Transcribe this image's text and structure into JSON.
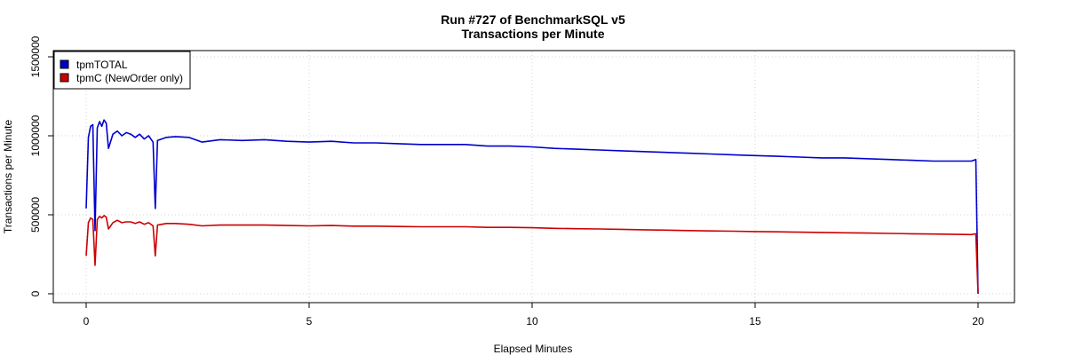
{
  "chart_data": {
    "type": "line",
    "title": "Run #727 of BenchmarkSQL v5",
    "subtitle": "Transactions per Minute",
    "xlabel": "Elapsed Minutes",
    "ylabel": "Transactions per Minute",
    "xlim": [
      0,
      20
    ],
    "ylim": [
      0,
      1500000
    ],
    "xticks": [
      0,
      5,
      10,
      15,
      20
    ],
    "yticks": [
      0,
      500000,
      1000000,
      1500000
    ],
    "grid": true,
    "legend_position": "top-left",
    "series": [
      {
        "name": "tpmTOTAL",
        "color": "#0000CD",
        "points": [
          [
            0.0,
            540000
          ],
          [
            0.05,
            990000
          ],
          [
            0.1,
            1060000
          ],
          [
            0.15,
            1070000
          ],
          [
            0.2,
            400000
          ],
          [
            0.25,
            1050000
          ],
          [
            0.3,
            1090000
          ],
          [
            0.35,
            1060000
          ],
          [
            0.4,
            1100000
          ],
          [
            0.45,
            1080000
          ],
          [
            0.5,
            920000
          ],
          [
            0.6,
            1010000
          ],
          [
            0.7,
            1030000
          ],
          [
            0.8,
            1000000
          ],
          [
            0.9,
            1020000
          ],
          [
            1.0,
            1010000
          ],
          [
            1.1,
            990000
          ],
          [
            1.2,
            1010000
          ],
          [
            1.3,
            980000
          ],
          [
            1.4,
            1000000
          ],
          [
            1.5,
            960000
          ],
          [
            1.55,
            540000
          ],
          [
            1.6,
            970000
          ],
          [
            1.8,
            990000
          ],
          [
            2.0,
            995000
          ],
          [
            2.3,
            990000
          ],
          [
            2.6,
            960000
          ],
          [
            3.0,
            975000
          ],
          [
            3.5,
            970000
          ],
          [
            4.0,
            975000
          ],
          [
            4.5,
            965000
          ],
          [
            5.0,
            960000
          ],
          [
            5.5,
            965000
          ],
          [
            6.0,
            955000
          ],
          [
            6.5,
            955000
          ],
          [
            7.0,
            950000
          ],
          [
            7.5,
            945000
          ],
          [
            8.0,
            945000
          ],
          [
            8.5,
            945000
          ],
          [
            9.0,
            935000
          ],
          [
            9.5,
            935000
          ],
          [
            10.0,
            930000
          ],
          [
            10.5,
            920000
          ],
          [
            11.0,
            915000
          ],
          [
            11.5,
            910000
          ],
          [
            12.0,
            905000
          ],
          [
            12.5,
            900000
          ],
          [
            13.0,
            895000
          ],
          [
            13.5,
            890000
          ],
          [
            14.0,
            885000
          ],
          [
            14.5,
            880000
          ],
          [
            15.0,
            875000
          ],
          [
            15.5,
            870000
          ],
          [
            16.0,
            865000
          ],
          [
            16.5,
            860000
          ],
          [
            17.0,
            860000
          ],
          [
            17.5,
            855000
          ],
          [
            18.0,
            850000
          ],
          [
            18.5,
            845000
          ],
          [
            19.0,
            840000
          ],
          [
            19.5,
            840000
          ],
          [
            19.85,
            840000
          ],
          [
            19.95,
            850000
          ],
          [
            20.0,
            0
          ]
        ]
      },
      {
        "name": "tpmC (NewOrder only)",
        "color": "#CD0000",
        "points": [
          [
            0.0,
            240000
          ],
          [
            0.05,
            450000
          ],
          [
            0.1,
            480000
          ],
          [
            0.15,
            470000
          ],
          [
            0.2,
            180000
          ],
          [
            0.25,
            470000
          ],
          [
            0.3,
            490000
          ],
          [
            0.35,
            480000
          ],
          [
            0.4,
            495000
          ],
          [
            0.45,
            485000
          ],
          [
            0.5,
            410000
          ],
          [
            0.6,
            450000
          ],
          [
            0.7,
            465000
          ],
          [
            0.8,
            450000
          ],
          [
            0.9,
            455000
          ],
          [
            1.0,
            455000
          ],
          [
            1.1,
            445000
          ],
          [
            1.2,
            455000
          ],
          [
            1.3,
            440000
          ],
          [
            1.4,
            450000
          ],
          [
            1.5,
            430000
          ],
          [
            1.55,
            240000
          ],
          [
            1.6,
            435000
          ],
          [
            1.8,
            445000
          ],
          [
            2.0,
            445000
          ],
          [
            2.3,
            440000
          ],
          [
            2.6,
            430000
          ],
          [
            3.0,
            435000
          ],
          [
            3.5,
            435000
          ],
          [
            4.0,
            435000
          ],
          [
            4.5,
            432000
          ],
          [
            5.0,
            430000
          ],
          [
            5.5,
            432000
          ],
          [
            6.0,
            428000
          ],
          [
            6.5,
            428000
          ],
          [
            7.0,
            426000
          ],
          [
            7.5,
            424000
          ],
          [
            8.0,
            424000
          ],
          [
            8.5,
            424000
          ],
          [
            9.0,
            420000
          ],
          [
            9.5,
            420000
          ],
          [
            10.0,
            418000
          ],
          [
            10.5,
            414000
          ],
          [
            11.0,
            412000
          ],
          [
            11.5,
            410000
          ],
          [
            12.0,
            408000
          ],
          [
            12.5,
            405000
          ],
          [
            13.0,
            403000
          ],
          [
            13.5,
            400000
          ],
          [
            14.0,
            398000
          ],
          [
            14.5,
            396000
          ],
          [
            15.0,
            394000
          ],
          [
            15.5,
            392000
          ],
          [
            16.0,
            390000
          ],
          [
            16.5,
            388000
          ],
          [
            17.0,
            386000
          ],
          [
            17.5,
            384000
          ],
          [
            18.0,
            382000
          ],
          [
            18.5,
            380000
          ],
          [
            19.0,
            378000
          ],
          [
            19.5,
            376000
          ],
          [
            19.85,
            375000
          ],
          [
            19.95,
            380000
          ],
          [
            20.0,
            0
          ]
        ]
      }
    ]
  }
}
